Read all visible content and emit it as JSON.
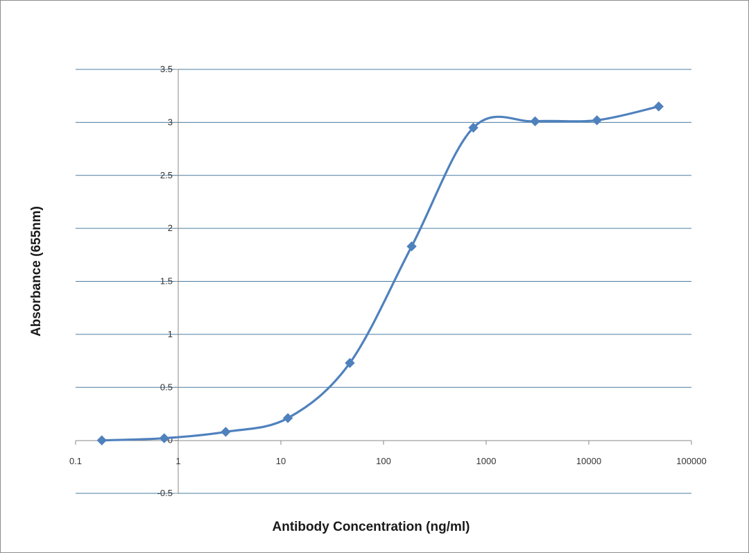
{
  "chart_data": {
    "type": "line",
    "title": "",
    "xlabel": "Antibody Concentration (ng/ml)",
    "ylabel": "Absorbance (655nm)",
    "x_scale": "log",
    "xlim": [
      0.1,
      100000
    ],
    "ylim": [
      -0.5,
      3.5
    ],
    "x_ticks": [
      0.1,
      1,
      10,
      100,
      1000,
      10000,
      100000
    ],
    "x_tick_labels": [
      "0.1",
      "1",
      "10",
      "100",
      "1000",
      "10000",
      "100000"
    ],
    "y_ticks": [
      -0.5,
      0,
      0.5,
      1,
      1.5,
      2,
      2.5,
      3,
      3.5
    ],
    "y_tick_labels": [
      "-0.5",
      "0",
      "0.5",
      "1",
      "1.5",
      "2",
      "2.5",
      "3",
      "3.5"
    ],
    "grid": "horizontal",
    "legend": "none",
    "marker": "diamond",
    "series": [
      {
        "name": "Absorbance",
        "color": "#4f81bd",
        "x": [
          0.18,
          0.73,
          2.9,
          11.7,
          47,
          188,
          750,
          3000,
          12000,
          48000
        ],
        "y": [
          0.0,
          0.02,
          0.08,
          0.21,
          0.73,
          1.83,
          2.95,
          3.01,
          3.02,
          3.15
        ]
      }
    ]
  }
}
